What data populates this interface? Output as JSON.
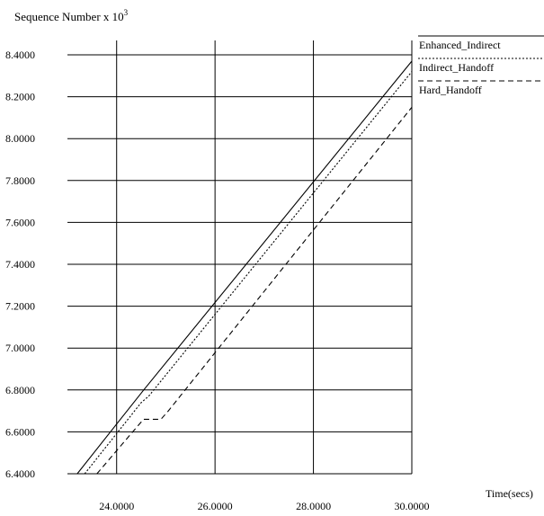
{
  "chart_data": {
    "type": "line",
    "title": "Sequence Number x 10",
    "title_superscript": "3",
    "xlabel": "Time(secs)",
    "ylabel": "",
    "xlim": [
      23.0,
      30.0
    ],
    "ylim": [
      6.4,
      8.4
    ],
    "x_ticks": [
      24.0,
      26.0,
      28.0,
      30.0
    ],
    "x_tick_labels": [
      "24.0000",
      "26.0000",
      "28.0000",
      "30.0000"
    ],
    "y_ticks": [
      6.4,
      6.6,
      6.8,
      7.0,
      7.2,
      7.4,
      7.6,
      7.8,
      8.0,
      8.2,
      8.4
    ],
    "y_tick_labels": [
      "6.4000",
      "6.6000",
      "6.8000",
      "7.0000",
      "7.2000",
      "7.4000",
      "7.6000",
      "7.8000",
      "8.0000",
      "8.2000",
      "8.4000"
    ],
    "grid": true,
    "legend_position": "top-right, outside plot",
    "series": [
      {
        "name": "Enhanced_Indirect",
        "style": "solid",
        "x": [
          23.2,
          24.55,
          30.0
        ],
        "y": [
          6.4,
          6.8,
          8.37
        ]
      },
      {
        "name": "Indirect_Handoff",
        "style": "dotted",
        "x": [
          23.35,
          24.5,
          24.65,
          30.0
        ],
        "y": [
          6.4,
          6.74,
          6.77,
          8.32
        ]
      },
      {
        "name": "Hard_Handoff",
        "style": "dashed",
        "x": [
          23.6,
          24.4,
          24.55,
          24.9,
          25.05,
          30.0
        ],
        "y": [
          6.4,
          6.62,
          6.66,
          6.66,
          6.7,
          8.15
        ]
      }
    ]
  }
}
